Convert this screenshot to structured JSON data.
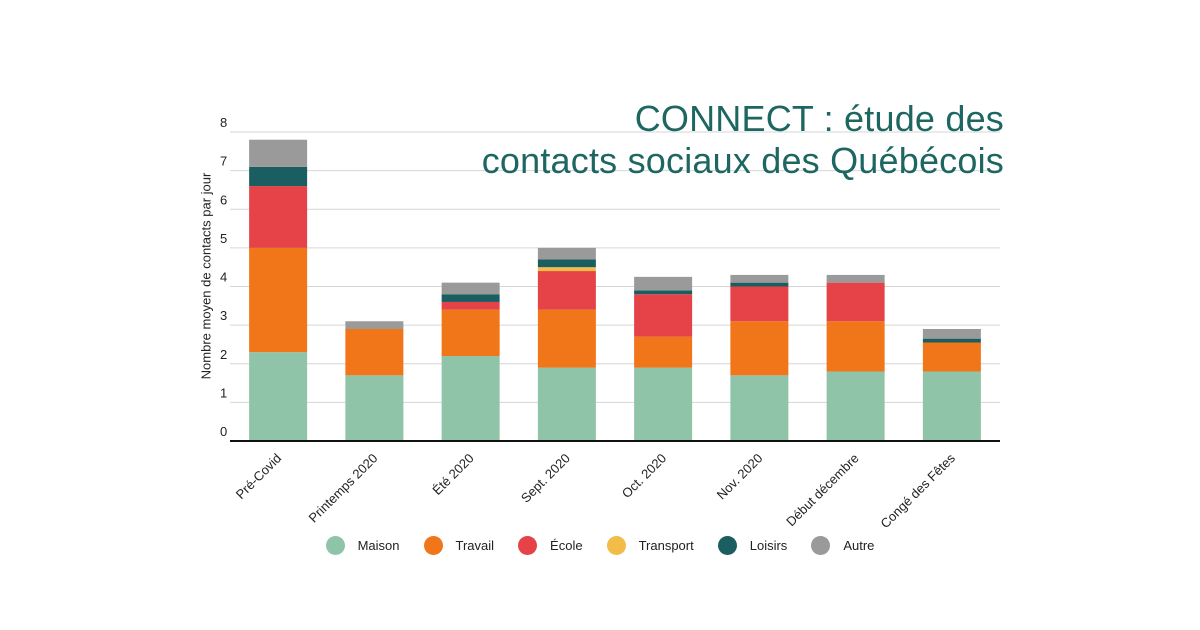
{
  "chart_data": {
    "type": "bar",
    "stacked": true,
    "title_lines": [
      "CONNECT : étude des",
      "contacts sociaux des Québécois"
    ],
    "ylabel": "Nombre moyen de contacts par jour",
    "xlabel": "",
    "ylim": [
      0,
      8
    ],
    "yticks": [
      0,
      1,
      2,
      3,
      4,
      5,
      6,
      7,
      8
    ],
    "grid": true,
    "legend_position": "bottom",
    "categories": [
      "Pré-Covid",
      "Printemps 2020",
      "Été 2020",
      "Sept. 2020",
      "Oct. 2020",
      "Nov. 2020",
      "Début décembre",
      "Congé des Fêtes"
    ],
    "series": [
      {
        "name": "Maison",
        "color": "#8fc4a8",
        "values": [
          2.3,
          1.7,
          2.2,
          1.9,
          1.9,
          1.7,
          1.8,
          1.8
        ]
      },
      {
        "name": "Travail",
        "color": "#f07619",
        "values": [
          2.7,
          1.2,
          1.2,
          1.5,
          0.8,
          1.4,
          1.3,
          0.75
        ]
      },
      {
        "name": "École",
        "color": "#e54347",
        "values": [
          1.6,
          0.0,
          0.2,
          1.0,
          1.1,
          0.9,
          1.0,
          0.0
        ]
      },
      {
        "name": "Transport",
        "color": "#f2bc48",
        "values": [
          0.0,
          0.0,
          0.0,
          0.1,
          0.0,
          0.0,
          0.0,
          0.0
        ]
      },
      {
        "name": "Loisirs",
        "color": "#1b5e61",
        "values": [
          0.5,
          0.0,
          0.2,
          0.2,
          0.1,
          0.1,
          0.0,
          0.1
        ]
      },
      {
        "name": "Autre",
        "color": "#9a9a9a",
        "values": [
          0.7,
          0.2,
          0.3,
          0.3,
          0.35,
          0.2,
          0.2,
          0.25
        ]
      }
    ]
  }
}
